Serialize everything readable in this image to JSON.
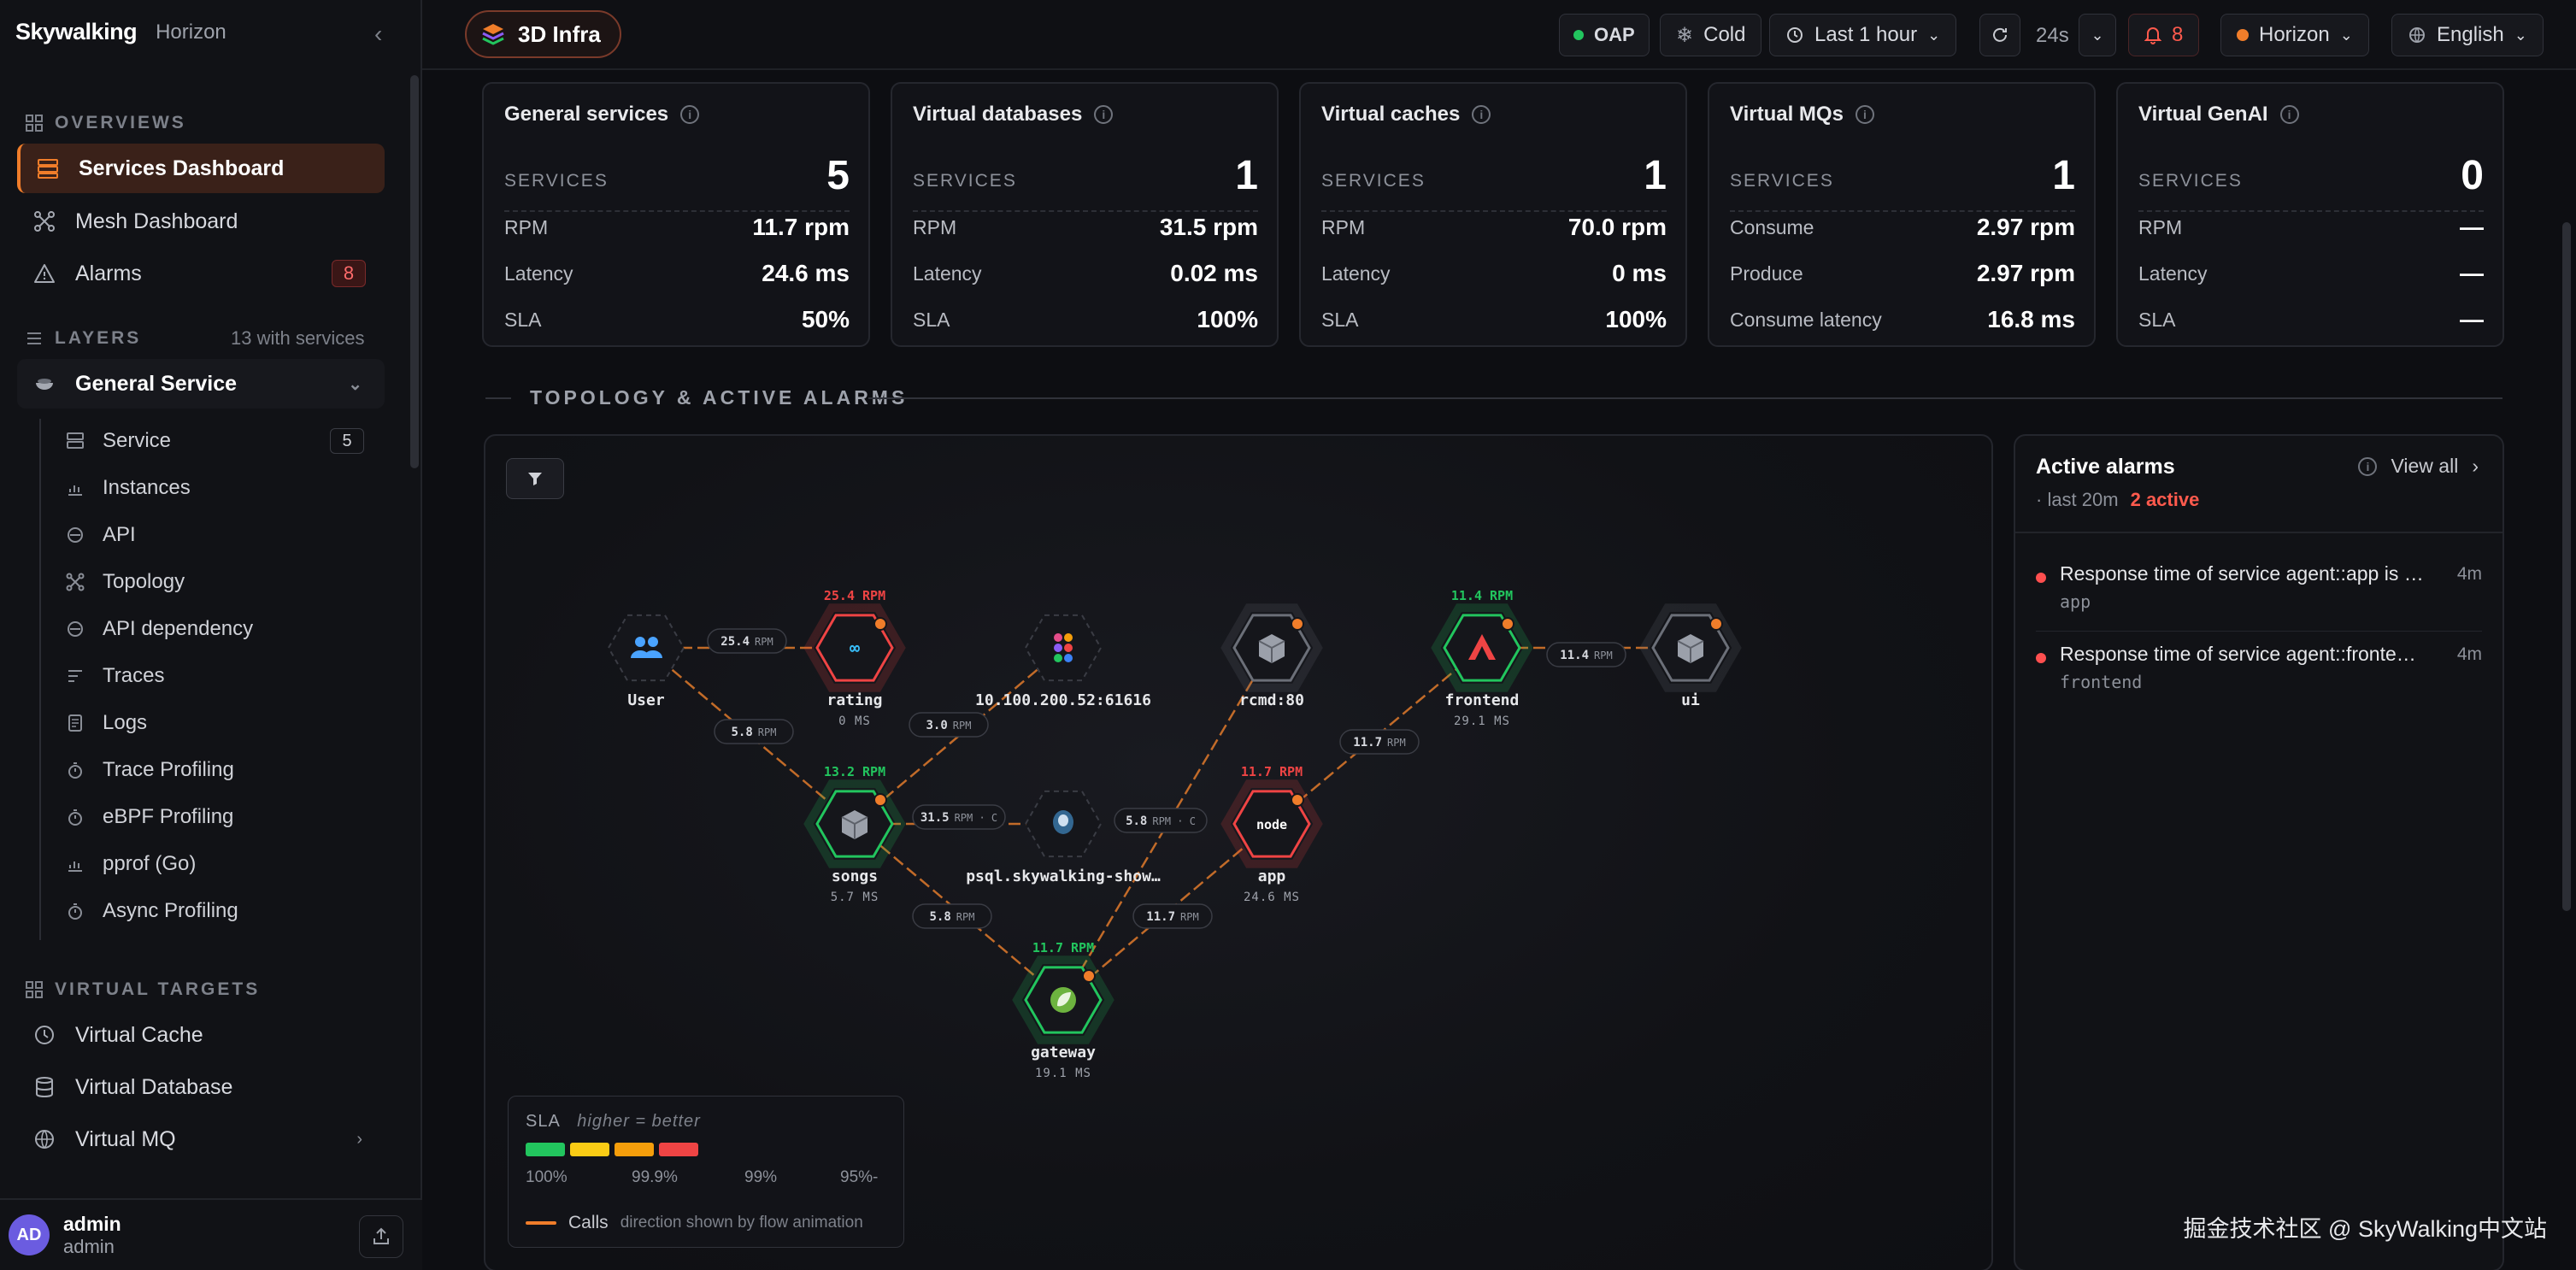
{
  "sidebar": {
    "brand": "Skywalking",
    "brand_sub": "Horizon",
    "sections": {
      "overviews": "OVERVIEWS",
      "layers": "LAYERS",
      "layers_count": "13 with services",
      "virtual_targets": "VIRTUAL TARGETS"
    },
    "overviews": [
      {
        "label": "Services Dashboard",
        "icon": "dashboard-icon"
      },
      {
        "label": "Mesh Dashboard",
        "icon": "mesh-icon"
      },
      {
        "label": "Alarms",
        "icon": "warning-icon",
        "badge": "8"
      }
    ],
    "layer": {
      "label": "General Service"
    },
    "layer_items": [
      {
        "label": "Service",
        "badge": "5"
      },
      {
        "label": "Instances"
      },
      {
        "label": "API"
      },
      {
        "label": "Topology"
      },
      {
        "label": "API dependency"
      },
      {
        "label": "Traces"
      },
      {
        "label": "Logs"
      },
      {
        "label": "Trace Profiling"
      },
      {
        "label": "eBPF Profiling"
      },
      {
        "label": "pprof (Go)"
      },
      {
        "label": "Async Profiling"
      }
    ],
    "virtual": [
      {
        "label": "Virtual Cache"
      },
      {
        "label": "Virtual Database"
      },
      {
        "label": "Virtual MQ"
      }
    ],
    "user": {
      "initials": "AD",
      "name": "admin",
      "role": "admin"
    }
  },
  "topbar": {
    "infra": "3D Infra",
    "oap": "OAP",
    "cold": "Cold",
    "time": "Last 1 hour",
    "refresh": "24s",
    "alarm_count": "8",
    "theme": "Horizon",
    "language": "English",
    "colors": {
      "oap": "#22c55e",
      "theme": "#f07d2a",
      "alarm": "#ff5a4d"
    }
  },
  "cards": [
    {
      "title": "General services",
      "services_label": "SERVICES",
      "services": "5",
      "rows": [
        [
          "RPM",
          "11.7 rpm"
        ],
        [
          "Latency",
          "24.6 ms"
        ],
        [
          "SLA",
          "50%"
        ]
      ]
    },
    {
      "title": "Virtual databases",
      "services_label": "SERVICES",
      "services": "1",
      "rows": [
        [
          "RPM",
          "31.5 rpm"
        ],
        [
          "Latency",
          "0.02 ms"
        ],
        [
          "SLA",
          "100%"
        ]
      ]
    },
    {
      "title": "Virtual caches",
      "services_label": "SERVICES",
      "services": "1",
      "rows": [
        [
          "RPM",
          "70.0 rpm"
        ],
        [
          "Latency",
          "0 ms"
        ],
        [
          "SLA",
          "100%"
        ]
      ]
    },
    {
      "title": "Virtual MQs",
      "services_label": "SERVICES",
      "services": "1",
      "rows": [
        [
          "Consume",
          "2.97 rpm"
        ],
        [
          "Produce",
          "2.97 rpm"
        ],
        [
          "Consume latency",
          "16.8 ms"
        ]
      ]
    },
    {
      "title": "Virtual GenAI",
      "services_label": "SERVICES",
      "services": "0",
      "rows": [
        [
          "RPM",
          "—"
        ],
        [
          "Latency",
          "—"
        ],
        [
          "SLA",
          "—"
        ]
      ]
    }
  ],
  "topology": {
    "heading": "TOPOLOGY & ACTIVE ALARMS",
    "nodes": [
      {
        "id": "user",
        "name": "User",
        "icon": "users-icon",
        "status": "none"
      },
      {
        "id": "rating",
        "name": "rating",
        "sub": "0 MS",
        "rpm": "25.4 RPM",
        "icon": "go-icon",
        "status": "red"
      },
      {
        "id": "ip",
        "name": "10.100.200.52:61616",
        "icon": "activemq-icon",
        "status": "none"
      },
      {
        "id": "rcmd",
        "name": "rcmd:80",
        "icon": "cube-icon",
        "status": "gray"
      },
      {
        "id": "frontend",
        "name": "frontend",
        "sub": "29.1 MS",
        "rpm": "11.4 RPM",
        "icon": "angular-icon",
        "status": "green"
      },
      {
        "id": "ui",
        "name": "ui",
        "icon": "cube-icon",
        "status": "gray"
      },
      {
        "id": "songs",
        "name": "songs",
        "sub": "5.7 MS",
        "rpm": "13.2 RPM",
        "icon": "cube-icon",
        "status": "green"
      },
      {
        "id": "psql",
        "name": "psql.skywalking-show…",
        "icon": "postgres-icon",
        "status": "none"
      },
      {
        "id": "app",
        "name": "app",
        "sub": "24.6 MS",
        "rpm": "11.7 RPM",
        "icon": "node-icon",
        "status": "red"
      },
      {
        "id": "gateway",
        "name": "gateway",
        "sub": "19.1 MS",
        "rpm": "11.7 RPM",
        "icon": "spring-icon",
        "status": "green"
      }
    ],
    "edges": [
      {
        "value": "25.4",
        "unit": "RPM"
      },
      {
        "value": "5.8",
        "unit": "RPM"
      },
      {
        "value": "3.0",
        "unit": "RPM"
      },
      {
        "value": "31.5",
        "unit": "RPM · C"
      },
      {
        "value": "5.8",
        "unit": "RPM"
      },
      {
        "value": "5.8",
        "unit": "RPM · C"
      },
      {
        "value": "11.7",
        "unit": "RPM"
      },
      {
        "value": "11.7",
        "unit": "RPM"
      },
      {
        "value": "11.4",
        "unit": "RPM"
      }
    ],
    "legend": {
      "title": "SLA",
      "hint": "higher = better",
      "ticks": [
        "100%",
        "99.9%",
        "99%",
        "95%-"
      ],
      "colors": [
        "#22c55e",
        "#facc15",
        "#f59e0b",
        "#ef4444"
      ],
      "calls": "Calls",
      "calls_hint": "direction shown by flow animation"
    }
  },
  "alarms": {
    "title": "Active alarms",
    "view_all": "View all",
    "window": "· last 20m",
    "active": "2 active",
    "items": [
      {
        "message": "Response time of service agent::app is …",
        "service": "app",
        "time": "4m"
      },
      {
        "message": "Response time of service agent::fronte…",
        "service": "frontend",
        "time": "4m"
      }
    ]
  },
  "watermark": "掘金技术社区 @ SkyWalking中文站"
}
